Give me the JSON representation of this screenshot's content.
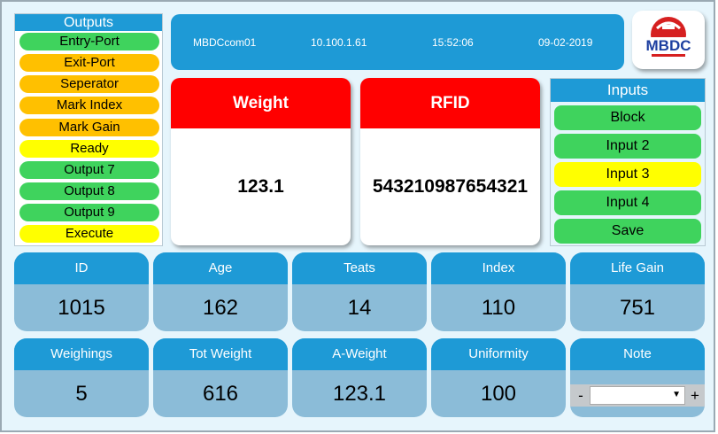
{
  "outputs": {
    "title": "Outputs",
    "items": [
      {
        "label": "Entry-Port",
        "color": "#3fd35d"
      },
      {
        "label": "Exit-Port",
        "color": "#ffc000"
      },
      {
        "label": "Seperator",
        "color": "#ffc000"
      },
      {
        "label": "Mark Index",
        "color": "#ffc000"
      },
      {
        "label": "Mark Gain",
        "color": "#ffc000"
      },
      {
        "label": "Ready",
        "color": "#ffff00"
      },
      {
        "label": "Output 7",
        "color": "#3fd35d"
      },
      {
        "label": "Output 8",
        "color": "#3fd35d"
      },
      {
        "label": "Output 9",
        "color": "#3fd35d"
      },
      {
        "label": "Execute",
        "color": "#ffff00"
      }
    ]
  },
  "header": {
    "device": "MBDCcom01",
    "ip": "10.100.1.61",
    "time": "15:52:06",
    "date": "09-02-2019"
  },
  "logo": {
    "text": "MBDC",
    "color": "#d62020"
  },
  "weight": {
    "title": "Weight",
    "value": "123.1"
  },
  "rfid": {
    "title": "RFID",
    "value": "543210987654321"
  },
  "inputs": {
    "title": "Inputs",
    "items": [
      {
        "label": "Block",
        "color": "#3fd35d"
      },
      {
        "label": "Input 2",
        "color": "#3fd35d"
      },
      {
        "label": "Input 3",
        "color": "#ffff00"
      },
      {
        "label": "Input 4",
        "color": "#3fd35d"
      },
      {
        "label": "Save",
        "color": "#3fd35d"
      }
    ]
  },
  "stats": {
    "id": {
      "label": "ID",
      "value": "1015"
    },
    "age": {
      "label": "Age",
      "value": "162"
    },
    "teats": {
      "label": "Teats",
      "value": "14"
    },
    "index": {
      "label": "Index",
      "value": "110"
    },
    "life_gain": {
      "label": "Life Gain",
      "value": "751"
    },
    "weighings": {
      "label": "Weighings",
      "value": "5"
    },
    "tot_weight": {
      "label": "Tot Weight",
      "value": "616"
    },
    "a_weight": {
      "label": "A-Weight",
      "value": "123.1"
    },
    "uniformity": {
      "label": "Uniformity",
      "value": "100"
    },
    "note": {
      "label": "Note",
      "minus": "-",
      "plus": "+",
      "selected": ""
    }
  },
  "colors": {
    "accent": "#1e9ad6",
    "header_red": "#ff0000",
    "tile_body": "#8bbcd8"
  }
}
